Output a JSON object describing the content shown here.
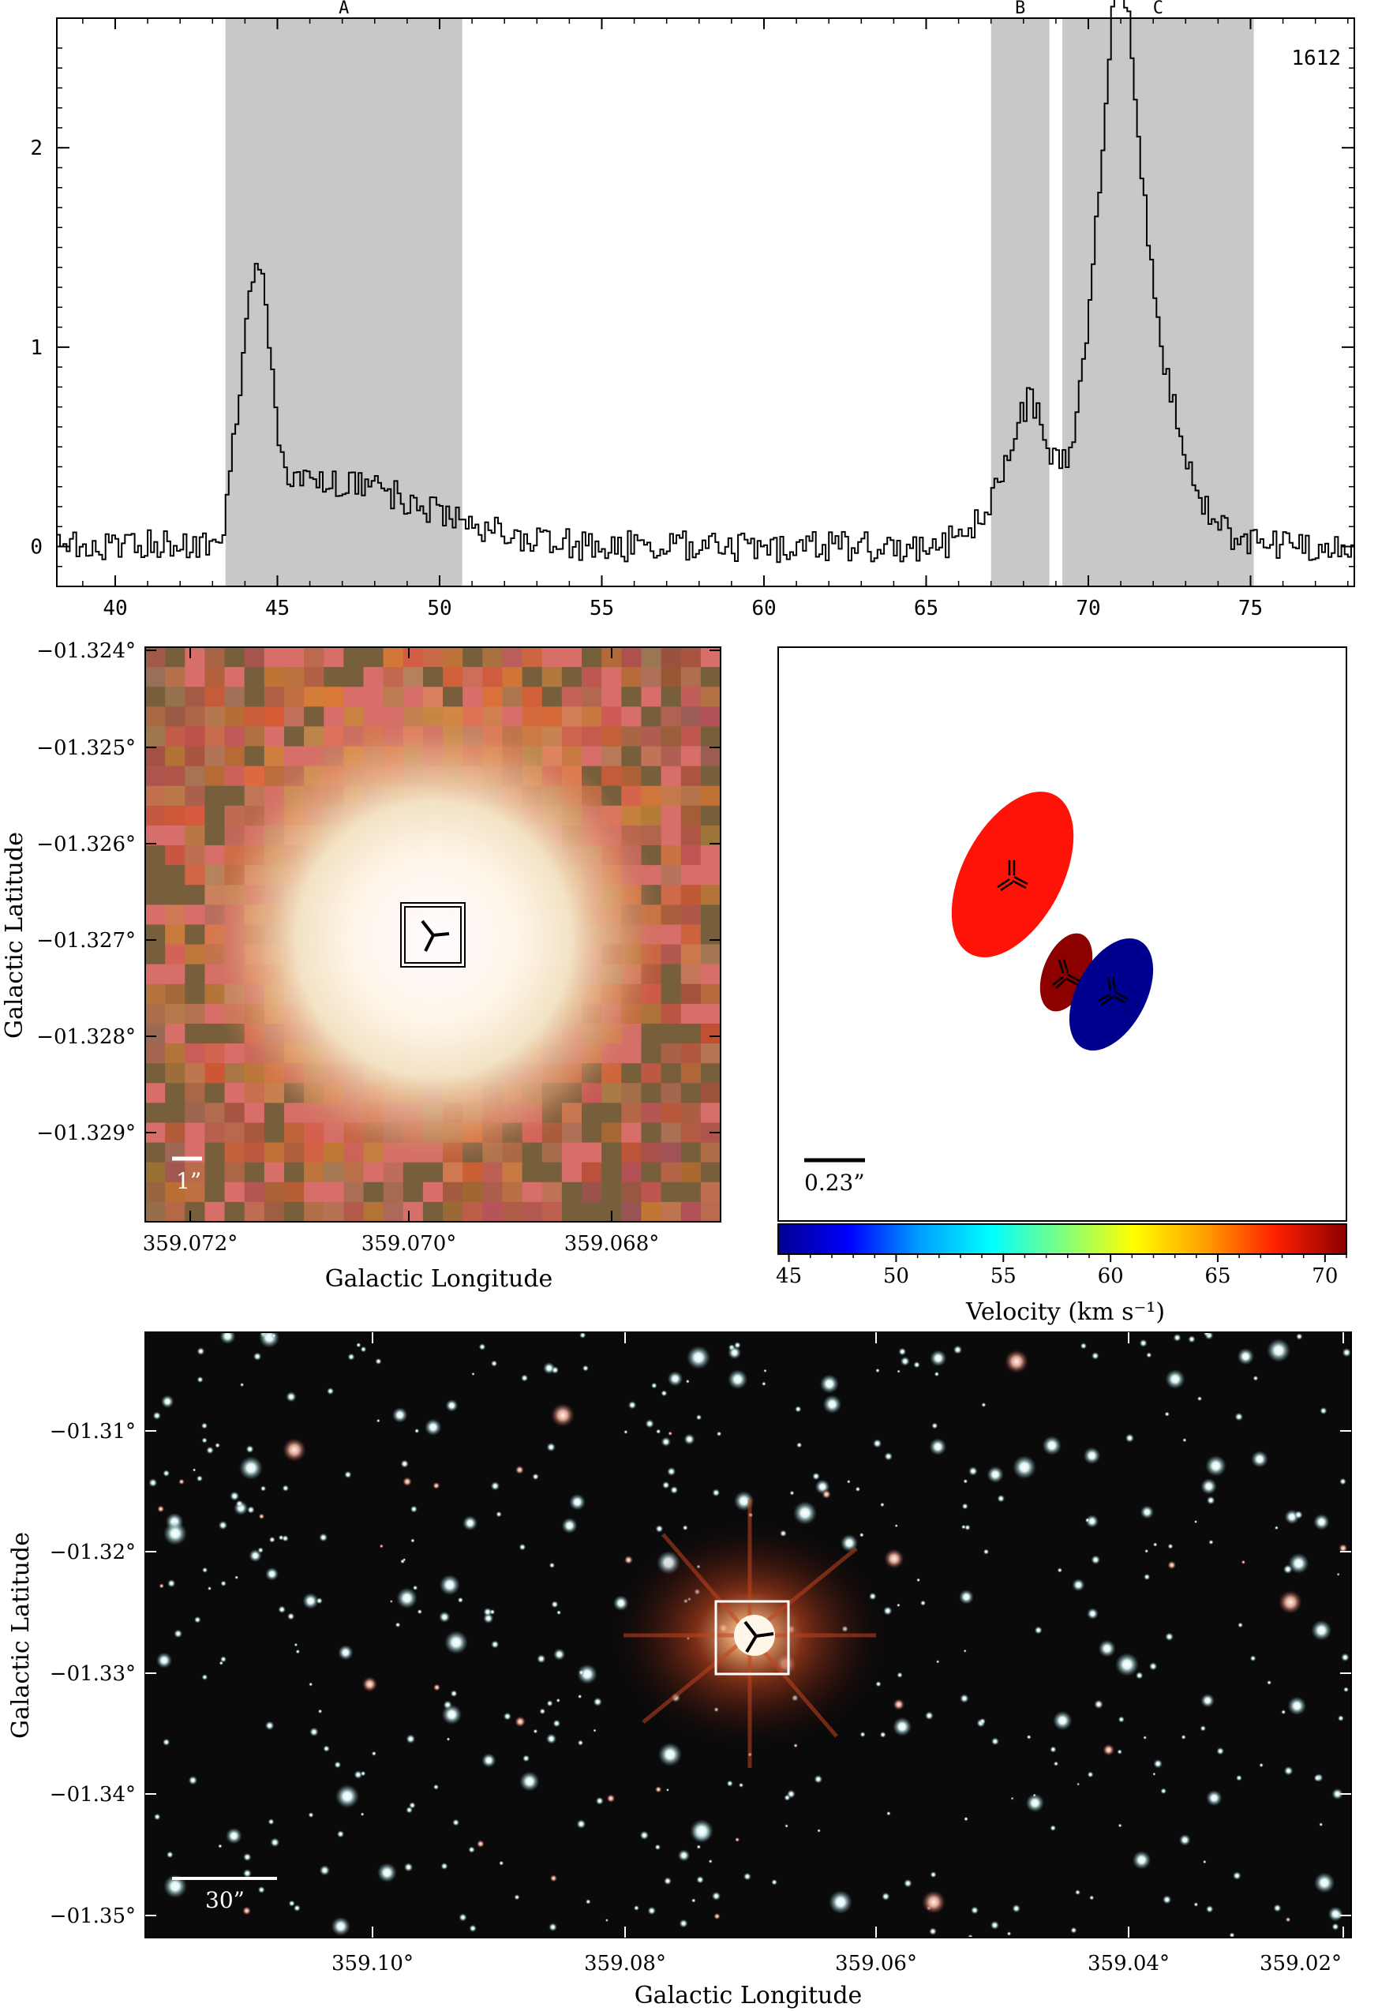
{
  "chart_data": [
    {
      "type": "line",
      "name": "spectrum",
      "xlim": [
        38.2,
        78.2
      ],
      "ylim": [
        -0.2,
        2.65
      ],
      "x_ticks": [
        40,
        45,
        50,
        55,
        60,
        65,
        70,
        75
      ],
      "y_ticks": [
        0,
        1,
        2
      ],
      "source_label": "1612",
      "regions": [
        {
          "label": "A",
          "x0": 43.4,
          "x1": 50.7
        },
        {
          "label": "B",
          "x0": 67.0,
          "x1": 68.8
        },
        {
          "label": "C",
          "x0": 69.2,
          "x1": 75.1
        }
      ],
      "peaks": [
        {
          "x": 44.3,
          "y": 1.48
        },
        {
          "x": 68.2,
          "y": 0.75
        },
        {
          "x": 70.9,
          "y": 2.58
        }
      ]
    },
    {
      "type": "heatmap",
      "name": "zoom-image",
      "xlabel": "Galactic Longitude",
      "ylabel": "Galactic Latitude",
      "x_ticks": [
        "359.072°",
        "359.070°",
        "359.068°"
      ],
      "y_ticks": [
        "−01.324°",
        "−01.325°",
        "−01.326°",
        "−01.327°",
        "−01.328°",
        "−01.329°"
      ],
      "scale_bar_label": "1”"
    },
    {
      "type": "scatter",
      "name": "maser-positions",
      "scale_bar_label": "0.23”",
      "colorbar": {
        "label": "Velocity (km s⁻¹)",
        "ticks": [
          "45",
          "50",
          "55",
          "60",
          "65",
          "70"
        ],
        "vmin": 44.5,
        "vmax": 71.0,
        "colors": [
          "#00008f",
          "#0000ff",
          "#00a0ff",
          "#00ffff",
          "#80ff80",
          "#ffff00",
          "#ffa000",
          "#ff2000",
          "#8b0000"
        ]
      },
      "components": [
        {
          "region": "A",
          "velocity": 69.0,
          "color": "#ff1208"
        },
        {
          "region": "B",
          "velocity": 70.5,
          "color": "#8c0000"
        },
        {
          "region": "C",
          "velocity": 45.3,
          "color": "#00008f"
        }
      ]
    },
    {
      "type": "heatmap",
      "name": "wide-field-image",
      "xlabel": "Galactic Longitude",
      "ylabel": "Galactic Latitude",
      "x_ticks": [
        "359.10°",
        "359.08°",
        "359.06°",
        "359.04°",
        "359.02°"
      ],
      "y_ticks": [
        "−01.31°",
        "−01.32°",
        "−01.33°",
        "−01.34°",
        "−01.35°"
      ],
      "scale_bar_label": "30”"
    }
  ],
  "colors": {
    "shade": "#c8c8c8",
    "frame": "#000000",
    "image_bg": "#0b0a0b"
  },
  "icons": [
    "maser-tri-icon",
    "box-marker-icon"
  ]
}
